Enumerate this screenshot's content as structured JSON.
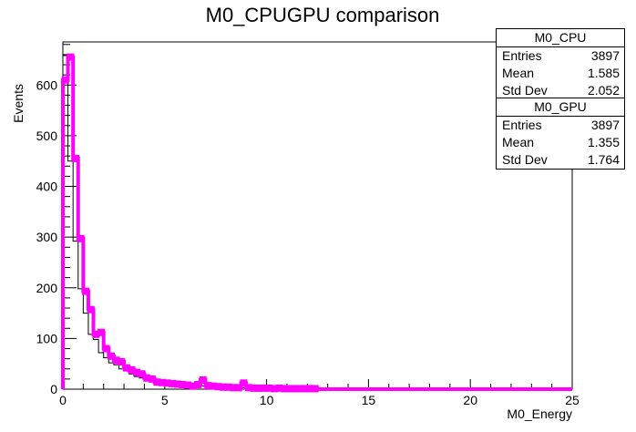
{
  "chart_data": {
    "type": "histogram",
    "title": "M0_CPUGPU comparison",
    "xlabel": "M0_Energy",
    "ylabel": "Events",
    "xlim": [
      0,
      25
    ],
    "ylim": [
      0,
      685
    ],
    "x_ticks": [
      0,
      5,
      10,
      15,
      20,
      25
    ],
    "y_ticks": [
      0,
      100,
      200,
      300,
      400,
      500,
      600
    ],
    "bin_width": 0.25,
    "series": [
      {
        "name": "M0_CPU",
        "color": "#000000",
        "values": [
          658,
          450,
          292,
          198,
          150,
          108,
          98,
          72,
          62,
          52,
          48,
          40,
          36,
          30,
          25,
          22,
          20,
          16,
          14,
          13,
          12,
          11,
          10,
          9,
          8,
          7,
          7,
          6,
          6,
          5,
          5,
          4,
          4,
          4,
          3,
          3,
          3,
          3,
          2,
          2,
          2,
          2,
          2,
          2,
          1,
          1,
          1,
          1,
          1,
          1
        ]
      },
      {
        "name": "M0_GPU",
        "color": "#ff00ff",
        "values": [
          610,
          655,
          455,
          297,
          193,
          157,
          108,
          112,
          80,
          65,
          57,
          54,
          42,
          38,
          33,
          30,
          22,
          20,
          14,
          13,
          12,
          11,
          10,
          9,
          8,
          6,
          9,
          18,
          7,
          6,
          5,
          4,
          4,
          3,
          3,
          12,
          3,
          2,
          2,
          2,
          2,
          1,
          2,
          1,
          1,
          1,
          1,
          1,
          1,
          1
        ]
      }
    ],
    "legend_position": "top-right",
    "grid": false
  },
  "stats": [
    {
      "name": "M0_CPU",
      "rows": [
        {
          "label": "Entries",
          "value": "3897"
        },
        {
          "label": "Mean",
          "value": "1.585"
        },
        {
          "label": "Std Dev",
          "value": "2.052"
        }
      ]
    },
    {
      "name": "M0_GPU",
      "rows": [
        {
          "label": "Entries",
          "value": "3897"
        },
        {
          "label": "Mean",
          "value": "1.355"
        },
        {
          "label": "Std Dev",
          "value": "1.764"
        }
      ]
    }
  ]
}
